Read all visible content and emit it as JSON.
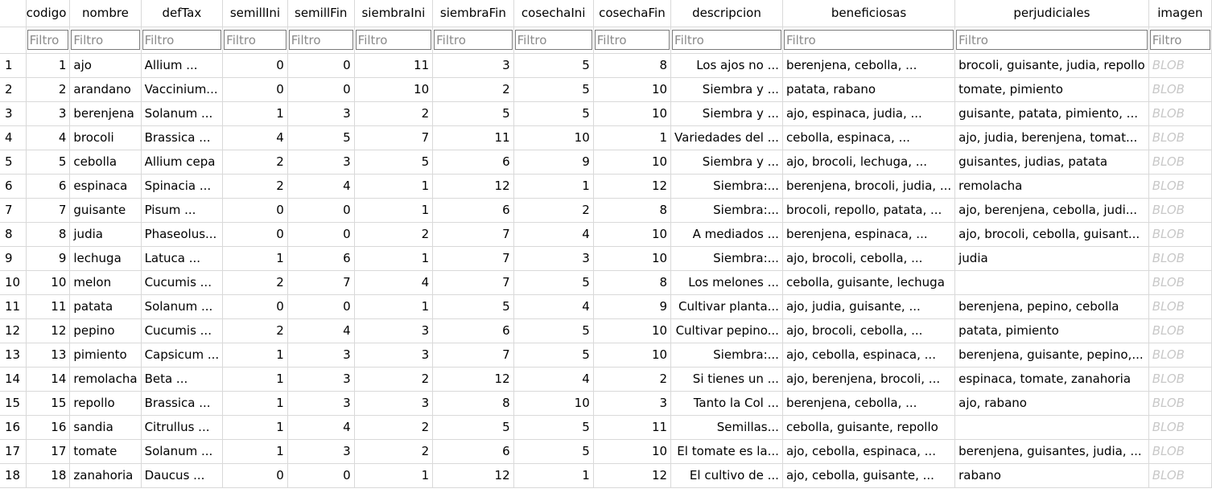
{
  "columns": [
    "codigo",
    "nombre",
    "defTax",
    "semillIni",
    "semillFin",
    "siembraIni",
    "siembraFin",
    "cosechaIni",
    "cosechaFin",
    "descripcion",
    "beneficiosas",
    "perjudiciales",
    "imagen"
  ],
  "filter_placeholder": "Filtro",
  "rows": [
    [
      "1",
      "1",
      "ajo",
      "Allium ...",
      "0",
      "0",
      "11",
      "3",
      "5",
      "8",
      "Los ajos no ...",
      "berenjena, cebolla, ...",
      "brocoli, guisante, judia, repollo",
      "BLOB"
    ],
    [
      "2",
      "2",
      "arandano",
      "Vaccinium...",
      "0",
      "0",
      "10",
      "2",
      "5",
      "10",
      "Siembra y ...",
      "patata, rabano",
      "tomate, pimiento",
      "BLOB"
    ],
    [
      "3",
      "3",
      "berenjena",
      "Solanum ...",
      "1",
      "3",
      "2",
      "5",
      "5",
      "10",
      "Siembra y ...",
      "ajo, espinaca, judia, ...",
      "guisante, patata, pimiento, ...",
      "BLOB"
    ],
    [
      "4",
      "4",
      "brocoli",
      "Brassica ...",
      "4",
      "5",
      "7",
      "11",
      "10",
      "1",
      "Variedades del ...",
      "cebolla, espinaca, ...",
      "ajo, judia, berenjena, tomat...",
      "BLOB"
    ],
    [
      "5",
      "5",
      "cebolla",
      "Allium cepa",
      "2",
      "3",
      "5",
      "6",
      "9",
      "10",
      "Siembra y ...",
      "ajo, brocoli, lechuga, ...",
      "guisantes, judias, patata",
      "BLOB"
    ],
    [
      "6",
      "6",
      "espinaca",
      "Spinacia ...",
      "2",
      "4",
      "1",
      "12",
      "1",
      "12",
      "Siembra:...",
      "berenjena, brocoli, judia, ...",
      "remolacha",
      "BLOB"
    ],
    [
      "7",
      "7",
      "guisante",
      "Pisum ...",
      "0",
      "0",
      "1",
      "6",
      "2",
      "8",
      "Siembra:...",
      "brocoli, repollo, patata, ...",
      "ajo, berenjena, cebolla, judi...",
      "BLOB"
    ],
    [
      "8",
      "8",
      "judia",
      "Phaseolus...",
      "0",
      "0",
      "2",
      "7",
      "4",
      "10",
      "A mediados ...",
      "berenjena, espinaca, ...",
      "ajo, brocoli, cebolla, guisant...",
      "BLOB"
    ],
    [
      "9",
      "9",
      "lechuga",
      "Latuca ...",
      "1",
      "6",
      "1",
      "7",
      "3",
      "10",
      "Siembra:...",
      "ajo, brocoli, cebolla, ...",
      "judia",
      "BLOB"
    ],
    [
      "10",
      "10",
      "melon",
      "Cucumis ...",
      "2",
      "7",
      "4",
      "7",
      "5",
      "8",
      "Los melones ...",
      "cebolla, guisante, lechuga",
      "",
      "BLOB"
    ],
    [
      "11",
      "11",
      "patata",
      "Solanum ...",
      "0",
      "0",
      "1",
      "5",
      "4",
      "9",
      "Cultivar planta...",
      "ajo, judia, guisante, ...",
      "berenjena, pepino, cebolla",
      "BLOB"
    ],
    [
      "12",
      "12",
      "pepino",
      "Cucumis ...",
      "2",
      "4",
      "3",
      "6",
      "5",
      "10",
      "Cultivar pepino...",
      "ajo, brocoli, cebolla, ...",
      "patata, pimiento",
      "BLOB"
    ],
    [
      "13",
      "13",
      "pimiento",
      "Capsicum ...",
      "1",
      "3",
      "3",
      "7",
      "5",
      "10",
      "Siembra:...",
      "ajo, cebolla, espinaca, ...",
      "berenjena, guisante, pepino,...",
      "BLOB"
    ],
    [
      "14",
      "14",
      "remolacha",
      "Beta ...",
      "1",
      "3",
      "2",
      "12",
      "4",
      "2",
      "Si tienes un ...",
      "ajo, berenjena, brocoli, ...",
      "espinaca, tomate, zanahoria",
      "BLOB"
    ],
    [
      "15",
      "15",
      "repollo",
      "Brassica ...",
      "1",
      "3",
      "3",
      "8",
      "10",
      "3",
      "Tanto la Col ...",
      "berenjena, cebolla, ...",
      "ajo, rabano",
      "BLOB"
    ],
    [
      "16",
      "16",
      "sandia",
      "Citrullus ...",
      "1",
      "4",
      "2",
      "5",
      "5",
      "11",
      "Semillas...",
      "cebolla, guisante, repollo",
      "",
      "BLOB"
    ],
    [
      "17",
      "17",
      "tomate",
      "Solanum ...",
      "1",
      "3",
      "2",
      "6",
      "5",
      "10",
      "El tomate es la...",
      "ajo, cebolla, espinaca, ...",
      "berenjena, guisantes, judia, ...",
      "BLOB"
    ],
    [
      "18",
      "18",
      "zanahoria",
      "Daucus ...",
      "0",
      "0",
      "1",
      "12",
      "1",
      "12",
      "El cultivo de ...",
      "ajo, cebolla, guisante, ...",
      "rabano",
      "BLOB"
    ]
  ]
}
